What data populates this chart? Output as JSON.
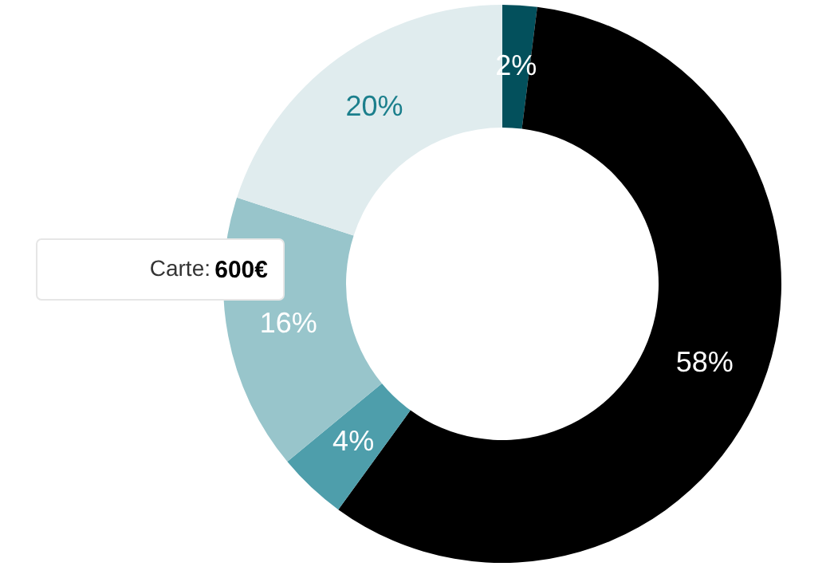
{
  "chart_data": {
    "type": "donut",
    "categories": [
      null,
      null,
      null,
      null,
      null
    ],
    "values": [
      2,
      58,
      4,
      16,
      20
    ],
    "colors": [
      "#03505c",
      "#000000",
      "#4e9eab",
      "#98c5cb",
      "#e0ecee"
    ],
    "value_labels": [
      "2%",
      "58%",
      "4%",
      "16%",
      "20%"
    ],
    "annotations": [
      "Carte: 600€"
    ]
  }
}
